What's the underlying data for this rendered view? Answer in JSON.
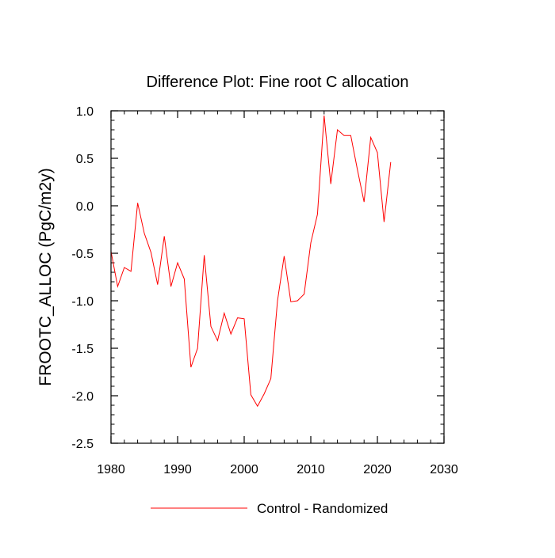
{
  "chart_data": {
    "type": "line",
    "title": "Difference Plot: Fine root C allocation",
    "xlabel": "",
    "ylabel": "FROOTC_ALLOC  (PgC/m2y)",
    "xlim": [
      1980,
      2030
    ],
    "ylim": [
      -2.5,
      1.0
    ],
    "xticks": [
      1980,
      1990,
      2000,
      2010,
      2020,
      2030
    ],
    "xtick_labels": [
      "1980",
      "1990",
      "2000",
      "2010",
      "2020",
      "2030"
    ],
    "yticks": [
      -2.5,
      -2.0,
      -1.5,
      -1.0,
      -0.5,
      0.0,
      0.5,
      1.0
    ],
    "ytick_labels": [
      "-2.5",
      "-2.0",
      "-1.5",
      "-1.0",
      "-0.5",
      "0.0",
      "0.5",
      "1.0"
    ],
    "x_minor_step": 2,
    "y_minor_step": 0.1,
    "grid": false,
    "legend_position": "bottom-center",
    "series": [
      {
        "name": "Control - Randomized",
        "color": "#ff0000",
        "x": [
          1980,
          1981,
          1982,
          1983,
          1984,
          1985,
          1986,
          1987,
          1988,
          1989,
          1990,
          1991,
          1992,
          1993,
          1994,
          1995,
          1996,
          1997,
          1998,
          1999,
          2000,
          2001,
          2002,
          2003,
          2004,
          2005,
          2006,
          2007,
          2008,
          2009,
          2010,
          2011,
          2012,
          2013,
          2014,
          2015,
          2016,
          2017,
          2018,
          2019,
          2020,
          2021,
          2022
        ],
        "y": [
          -0.48,
          -0.85,
          -0.65,
          -0.69,
          0.03,
          -0.29,
          -0.49,
          -0.83,
          -0.32,
          -0.85,
          -0.6,
          -0.77,
          -1.7,
          -1.5,
          -0.52,
          -1.27,
          -1.42,
          -1.13,
          -1.35,
          -1.18,
          -1.19,
          -1.99,
          -2.11,
          -1.98,
          -1.82,
          -1.0,
          -0.53,
          -1.01,
          -1.0,
          -0.93,
          -0.39,
          -0.09,
          0.95,
          0.23,
          0.8,
          0.74,
          0.74,
          0.38,
          0.04,
          0.72,
          0.56,
          -0.17,
          0.46
        ]
      }
    ]
  }
}
